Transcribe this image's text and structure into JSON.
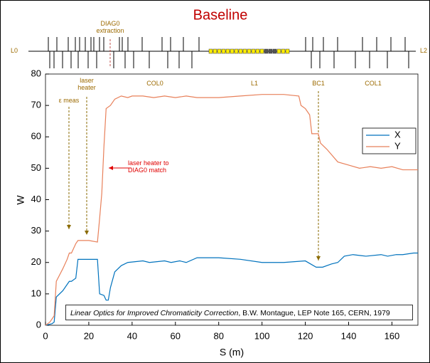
{
  "chart_data": {
    "type": "line",
    "title": "Baseline",
    "xlabel": "S (m)",
    "ylabel": "W",
    "xlim": [
      0,
      172
    ],
    "ylim": [
      0,
      80
    ],
    "xticks": [
      0,
      20,
      40,
      60,
      80,
      100,
      120,
      140,
      160
    ],
    "yticks": [
      0,
      10,
      20,
      30,
      40,
      50,
      60,
      70,
      80
    ],
    "legend": "upper right",
    "series": [
      {
        "name": "X",
        "color": "#0072bd",
        "x": [
          0,
          3,
          4,
          5,
          8,
          10,
          11,
          12,
          14,
          15,
          24,
          25,
          27,
          28,
          29,
          30,
          32,
          35,
          38,
          45,
          48,
          55,
          58,
          62,
          65,
          70,
          80,
          90,
          100,
          110,
          120,
          125,
          128,
          132,
          135,
          138,
          142,
          148,
          155,
          158,
          162,
          165,
          170,
          172
        ],
        "values": [
          0,
          0.5,
          1,
          9,
          11,
          13,
          14,
          14,
          15,
          21,
          21,
          10,
          9.5,
          8,
          8,
          12,
          17,
          19,
          20,
          20.5,
          20,
          20.5,
          20,
          20.5,
          20,
          21.5,
          21.5,
          21,
          20,
          20,
          20.5,
          18.5,
          18.5,
          19.5,
          20,
          22,
          22.5,
          22,
          22.5,
          22,
          22.5,
          22.5,
          23,
          23
        ]
      },
      {
        "name": "Y",
        "color": "#e8805a",
        "x": [
          0,
          2,
          4,
          5,
          8,
          10,
          11,
          12,
          14,
          15,
          20,
          24,
          25,
          26,
          27,
          28,
          30,
          32,
          35,
          38,
          40,
          45,
          50,
          55,
          60,
          65,
          70,
          80,
          90,
          100,
          110,
          117,
          118,
          120,
          122,
          123,
          126,
          127,
          130,
          135,
          140,
          145,
          150,
          155,
          160,
          165,
          172
        ],
        "values": [
          0,
          1,
          3,
          14,
          18,
          21,
          23,
          23,
          26,
          27,
          27,
          26.5,
          34,
          42,
          57,
          69,
          70,
          72,
          73,
          72.5,
          73,
          73,
          72.5,
          73,
          72.5,
          73,
          72.5,
          72.5,
          73,
          73.5,
          73.5,
          73,
          70,
          69,
          67,
          61,
          61,
          58,
          56,
          52,
          51,
          50,
          50.5,
          50,
          50.5,
          49.5,
          49.5
        ]
      }
    ],
    "annotations": [
      "DIAG0 extraction",
      "L0",
      "L2",
      "laser heater",
      "ε meas",
      "COL0",
      "L1",
      "BC1",
      "COL1",
      "laser heater to DIAG0 match"
    ],
    "note": {
      "title": "Linear Optics for Improved Chromaticity Correction",
      "text": ", B.W. Montague, LEP Note 165, CERN, 1979"
    }
  }
}
